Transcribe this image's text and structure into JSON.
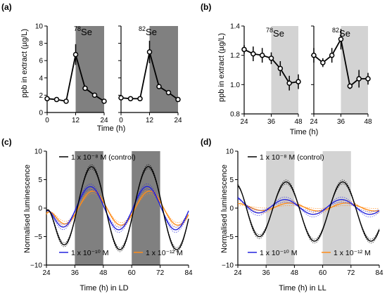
{
  "colors": {
    "dark_shade": "#808080",
    "light_shade": "#d3d3d3",
    "control": "#000000",
    "m10": "#2222dd",
    "m12": "#ff8c1a"
  },
  "chart_data": [
    {
      "panel_label": "(a)",
      "type": "line",
      "ylabel": "ppb in extract (µg/L)",
      "xlabel": "Time (h)",
      "ylim": [
        0,
        10
      ],
      "yticks": [
        0,
        2,
        4,
        6,
        8,
        10
      ],
      "xlim": [
        0,
        24
      ],
      "xticks": [
        0,
        12,
        24
      ],
      "shading": "dark",
      "shade_range": [
        12,
        24
      ],
      "subplots": [
        {
          "isotope_mass": "78",
          "isotope_symbol": "Se",
          "x": [
            0,
            4,
            8,
            12,
            16,
            20,
            24
          ],
          "y": [
            1.6,
            1.5,
            1.3,
            6.7,
            2.8,
            2.0,
            1.3
          ],
          "err": [
            0.1,
            0.1,
            0.1,
            1.2,
            0.2,
            0.2,
            0.1
          ]
        },
        {
          "isotope_mass": "82",
          "isotope_symbol": "Se",
          "x": [
            0,
            4,
            8,
            12,
            16,
            20,
            24
          ],
          "y": [
            1.7,
            1.6,
            1.6,
            7.0,
            3.0,
            2.3,
            1.5
          ],
          "err": [
            0.1,
            0.1,
            0.1,
            1.3,
            0.2,
            0.2,
            0.1
          ]
        }
      ]
    },
    {
      "panel_label": "(b)",
      "type": "line",
      "ylabel": "ppb in extract (µg/L)",
      "xlabel": "Time (h)",
      "ylim": [
        0.8,
        1.4
      ],
      "yticks": [
        "0.8",
        "1.0",
        "1.2",
        "1.4"
      ],
      "xlim": [
        24,
        48
      ],
      "xticks": [
        24,
        36,
        48
      ],
      "shading": "light",
      "shade_range": [
        36,
        48
      ],
      "subplots": [
        {
          "isotope_mass": "78",
          "isotope_symbol": "Se",
          "x": [
            24,
            28,
            32,
            36,
            40,
            44,
            48
          ],
          "y": [
            1.24,
            1.21,
            1.2,
            1.18,
            1.11,
            1.01,
            1.02
          ],
          "err": [
            0.03,
            0.05,
            0.05,
            0.04,
            0.05,
            0.05,
            0.05
          ]
        },
        {
          "isotope_mass": "82",
          "isotope_symbol": "Se",
          "x": [
            24,
            28,
            32,
            36,
            40,
            44,
            48
          ],
          "y": [
            1.2,
            1.15,
            1.2,
            1.31,
            0.99,
            1.04,
            1.04
          ],
          "err": [
            0.05,
            0.03,
            0.05,
            0.07,
            0.02,
            0.06,
            0.04
          ]
        }
      ]
    },
    {
      "panel_label": "(c)",
      "type": "line",
      "ylabel": "Normalised luminescence",
      "xlabel": "Time (h) in LD",
      "ylim": [
        -10,
        10
      ],
      "yticks": [
        -10,
        -5,
        0,
        5,
        10
      ],
      "xlim": [
        24,
        84
      ],
      "xticks": [
        24,
        36,
        48,
        60,
        72,
        84
      ],
      "shading": "dark",
      "shade_ranges": [
        [
          36,
          48
        ],
        [
          60,
          72
        ]
      ],
      "legend": [
        {
          "series": "control",
          "label": "1 x 10⁻⁸ M (control)"
        },
        {
          "series": "m10",
          "label": "1 x 10⁻¹⁰ M"
        },
        {
          "series": "m12",
          "label": "1 x 10⁻¹² M"
        }
      ],
      "series": [
        {
          "id": "control",
          "amp": 7.3,
          "peak_first": 43.0,
          "period": 24.0,
          "offset": 0.0,
          "start_value": -0.5,
          "rise": 2.5
        },
        {
          "id": "m10",
          "amp": 3.8,
          "peak_first": 42.5,
          "period": 24.0,
          "offset": 0.0,
          "start_value": -0.5,
          "rise": 2.0
        },
        {
          "id": "m12",
          "amp": 3.0,
          "peak_first": 43.5,
          "period": 24.0,
          "offset": 0.0,
          "start_value": -1.0,
          "rise": 2.0
        }
      ]
    },
    {
      "panel_label": "(d)",
      "type": "line",
      "ylabel": "Normalised luminescence",
      "xlabel": "Time (h) in LL",
      "ylim": [
        -10,
        10
      ],
      "yticks": [
        -10,
        -5,
        0,
        5,
        10
      ],
      "xlim": [
        24,
        84
      ],
      "xticks": [
        24,
        36,
        48,
        60,
        72,
        84
      ],
      "shading": "light",
      "shade_ranges": [
        [
          36,
          48
        ],
        [
          60,
          72
        ]
      ],
      "legend": [
        {
          "series": "control",
          "label": "1 x 10⁻⁸ M (control)"
        },
        {
          "series": "m10",
          "label": "1 x 10⁻¹⁰ M"
        },
        {
          "series": "m12",
          "label": "1 x 10⁻¹² M"
        }
      ],
      "series": [
        {
          "id": "control",
          "amp": 5.2,
          "peak_first": 44.5,
          "period": 24.0,
          "offset": -0.6,
          "start_value": 4.0,
          "rise": 0.0
        },
        {
          "id": "m10",
          "amp": 1.3,
          "peak_first": 44.0,
          "period": 24.0,
          "offset": 0.2,
          "start_value": 1.8,
          "rise": 0.0
        },
        {
          "id": "m12",
          "amp": 0.7,
          "peak_first": 46.0,
          "period": 24.0,
          "offset": 0.2,
          "start_value": 0.8,
          "rise": 0.0
        }
      ]
    }
  ]
}
